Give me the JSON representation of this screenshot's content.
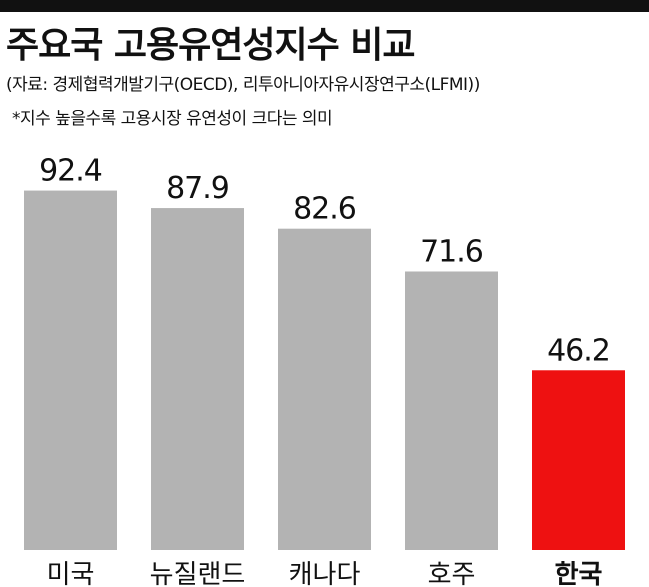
{
  "title": "주요국 고용유연성지수 비교",
  "source": "(자료: 경제협력개발기구(OECD), 리투아니아자유시장연구소(LFMI))",
  "note": "*지수 높을수록 고용시장 유연성이 크다는 의미",
  "colors": {
    "top_bar": "#111111",
    "bar_default": "#b3b3b3",
    "bar_highlight": "#ee1111",
    "text": "#111111"
  },
  "chart_data": {
    "type": "bar",
    "categories": [
      "미국",
      "뉴질랜드",
      "캐나다",
      "호주",
      "한국"
    ],
    "values": [
      92.4,
      87.9,
      82.6,
      71.6,
      46.2
    ],
    "value_labels": [
      "92.4",
      "87.9",
      "82.6",
      "71.6",
      "46.2"
    ],
    "highlight_index": 4,
    "title": "주요국 고용유연성지수 비교",
    "xlabel": "",
    "ylabel": "",
    "grid": false,
    "legend": "none"
  }
}
